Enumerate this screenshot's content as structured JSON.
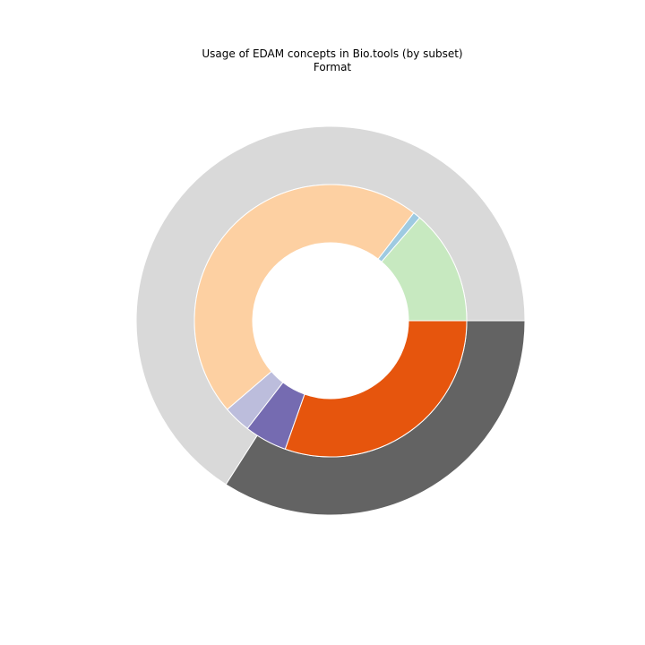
{
  "chart_data": {
    "type": "pie",
    "title": "Usage of EDAM concepts in Bio.tools (by subset)",
    "subtitle": "Format",
    "rings": [
      {
        "ring": "outer",
        "slices": [
          {
            "value": 0.6595,
            "color": "#d9d9d9"
          },
          {
            "value": 0.3405,
            "color": "#636363"
          }
        ]
      },
      {
        "ring": "inner",
        "slices": [
          {
            "value": 0.1365,
            "color": "#c7e9c0"
          },
          {
            "value": 0.009,
            "color": "#9ecae1"
          },
          {
            "value": 0.4675,
            "color": "#fdd0a2"
          },
          {
            "value": 0.0325,
            "color": "#bcbddc"
          },
          {
            "value": 0.0505,
            "color": "#756bb1"
          },
          {
            "value": 0.304,
            "color": "#e6550d"
          }
        ]
      }
    ],
    "start_angle_deg": 0,
    "direction": "counterclockwise"
  }
}
